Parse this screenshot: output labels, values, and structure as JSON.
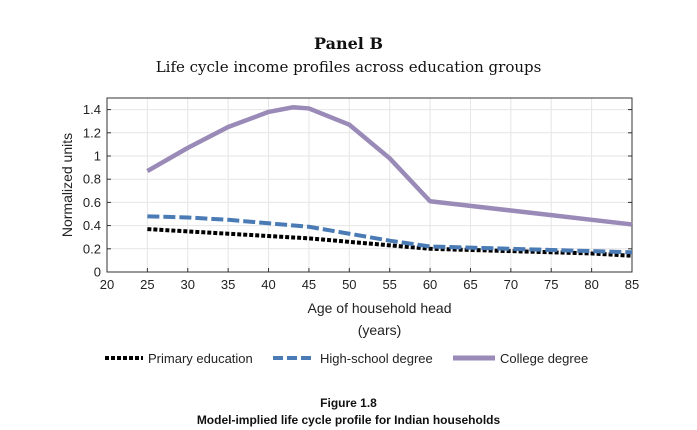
{
  "chart_data": {
    "type": "line",
    "title": "Panel B",
    "subtitle": "Life cycle income profiles across education groups",
    "xlabel": "Age of household head",
    "xlabel_unit": "(years)",
    "ylabel": "Normalized units",
    "xlim": [
      20,
      85
    ],
    "ylim": [
      0,
      1.5
    ],
    "xticks": [
      20,
      25,
      30,
      35,
      40,
      45,
      50,
      55,
      60,
      65,
      70,
      75,
      80,
      85
    ],
    "yticks": [
      0,
      0.2,
      0.4,
      0.6,
      0.8,
      1,
      1.2,
      1.4
    ],
    "ytick_labels": [
      "0",
      "0.2",
      "0.4",
      "0.6",
      "0.8",
      "1",
      "1.2",
      "1.4"
    ],
    "grid": true,
    "legend_position": "bottom",
    "series": [
      {
        "name": "Primary education",
        "color": "#000000",
        "style": "dotted",
        "x": [
          25,
          30,
          35,
          40,
          45,
          50,
          55,
          60,
          65,
          70,
          75,
          80,
          85
        ],
        "y": [
          0.37,
          0.35,
          0.33,
          0.31,
          0.29,
          0.26,
          0.23,
          0.2,
          0.19,
          0.18,
          0.17,
          0.16,
          0.14
        ]
      },
      {
        "name": "High-school degree",
        "color": "#4a7bb5",
        "style": "dashed",
        "x": [
          25,
          30,
          35,
          40,
          45,
          50,
          55,
          60,
          65,
          70,
          75,
          80,
          85
        ],
        "y": [
          0.48,
          0.47,
          0.45,
          0.42,
          0.39,
          0.33,
          0.27,
          0.22,
          0.21,
          0.2,
          0.19,
          0.18,
          0.17
        ]
      },
      {
        "name": "College degree",
        "color": "#9a8ab8",
        "style": "solid",
        "x": [
          25,
          30,
          35,
          40,
          43,
          45,
          50,
          55,
          60,
          65,
          70,
          75,
          80,
          85
        ],
        "y": [
          0.87,
          1.07,
          1.25,
          1.38,
          1.42,
          1.41,
          1.27,
          0.98,
          0.61,
          0.57,
          0.53,
          0.49,
          0.45,
          0.41
        ]
      }
    ]
  },
  "figure": {
    "number": "Figure 1.8",
    "caption": "Model-implied life cycle profile for Indian households"
  }
}
